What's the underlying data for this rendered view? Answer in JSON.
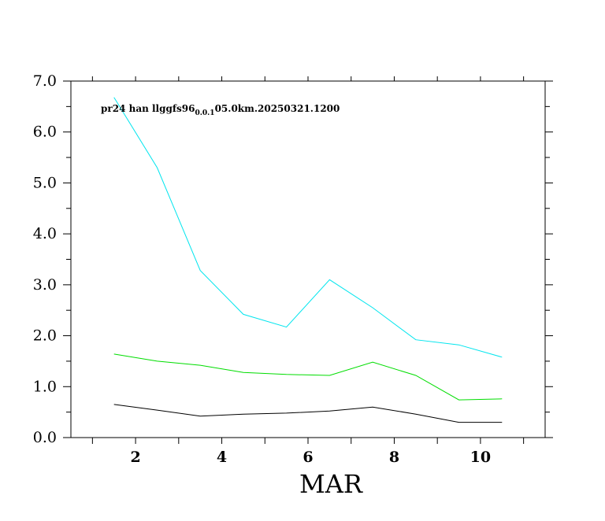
{
  "chart_data": {
    "type": "line",
    "annotation": {
      "prefix": "pr24 han llggfs96",
      "subscript": "0.0.1",
      "suffix": "05.0km.20250321.1200"
    },
    "xlabel": "MAR",
    "ylabel": "",
    "xlim": [
      0.5,
      11.5
    ],
    "ylim": [
      0,
      7
    ],
    "x_ticks": [
      {
        "value": 2,
        "label": "2"
      },
      {
        "value": 4,
        "label": "4"
      },
      {
        "value": 6,
        "label": "6"
      },
      {
        "value": 8,
        "label": "8"
      },
      {
        "value": 10,
        "label": "10"
      }
    ],
    "y_ticks": [
      {
        "value": 0,
        "label": "0.0"
      },
      {
        "value": 1,
        "label": "1.0"
      },
      {
        "value": 2,
        "label": "2.0"
      },
      {
        "value": 3,
        "label": "3.0"
      },
      {
        "value": 4,
        "label": "4.0"
      },
      {
        "value": 5,
        "label": "5.0"
      },
      {
        "value": 6,
        "label": "6.0"
      },
      {
        "value": 7,
        "label": "7.0"
      }
    ],
    "x": [
      1.5,
      2.5,
      3.5,
      4.5,
      5.5,
      6.5,
      7.5,
      8.5,
      9.5,
      10.5
    ],
    "series": [
      {
        "color": "#00e5ee",
        "values": [
          6.68,
          5.3,
          3.28,
          2.42,
          2.17,
          3.1,
          2.55,
          1.92,
          1.82,
          1.58
        ]
      },
      {
        "color": "#00dd00",
        "values": [
          1.64,
          1.5,
          1.42,
          1.28,
          1.24,
          1.22,
          1.48,
          1.22,
          0.74,
          0.76
        ]
      },
      {
        "color": "#000000",
        "values": [
          0.65,
          0.54,
          0.42,
          0.46,
          0.48,
          0.52,
          0.6,
          0.46,
          0.3,
          0.3
        ]
      }
    ],
    "grid": false,
    "legend": "none"
  }
}
